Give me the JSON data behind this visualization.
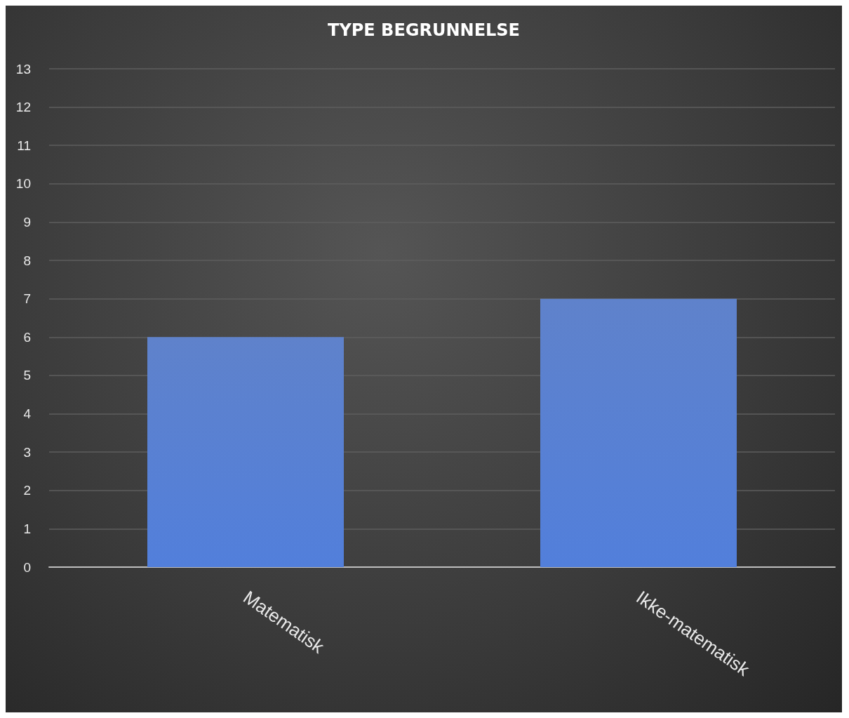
{
  "chart_data": {
    "type": "bar",
    "title": "TYPE BEGRUNNELSE",
    "categories": [
      "Matematisk",
      "Ikke-matematisk"
    ],
    "values": [
      6,
      7
    ],
    "color": "#4a72c4",
    "ylim": [
      0,
      13
    ],
    "yticks": [
      0,
      1,
      2,
      3,
      4,
      5,
      6,
      7,
      8,
      9,
      10,
      11,
      12,
      13
    ],
    "grid": "y"
  }
}
